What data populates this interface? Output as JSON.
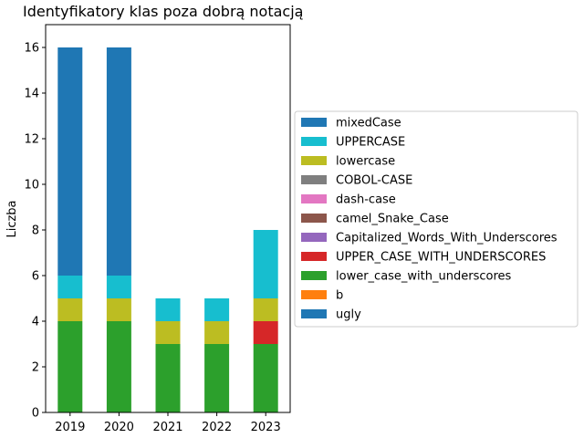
{
  "chart_data": {
    "type": "bar",
    "stacked": true,
    "title": "Identyfikatory klas poza dobrą notacją",
    "xlabel": "",
    "ylabel": "Liczba",
    "categories": [
      "2019",
      "2020",
      "2021",
      "2022",
      "2023"
    ],
    "ylim": [
      0,
      17
    ],
    "yticks": [
      0,
      2,
      4,
      6,
      8,
      10,
      12,
      14,
      16
    ],
    "grid": false,
    "legend_position": "right",
    "series": [
      {
        "name": "ugly",
        "color": "#1f77b4",
        "values": [
          0,
          0,
          0,
          0,
          0
        ]
      },
      {
        "name": "b",
        "color": "#ff7f0e",
        "values": [
          0,
          0,
          0,
          0,
          0
        ]
      },
      {
        "name": "lower_case_with_underscores",
        "color": "#2ca02c",
        "values": [
          4,
          4,
          3,
          3,
          3
        ]
      },
      {
        "name": "UPPER_CASE_WITH_UNDERSCORES",
        "color": "#d62728",
        "values": [
          0,
          0,
          0,
          0,
          1
        ]
      },
      {
        "name": "Capitalized_Words_With_Underscores",
        "color": "#9467bd",
        "values": [
          0,
          0,
          0,
          0,
          0
        ]
      },
      {
        "name": "camel_Snake_Case",
        "color": "#8c564b",
        "values": [
          0,
          0,
          0,
          0,
          0
        ]
      },
      {
        "name": "dash-case",
        "color": "#e377c2",
        "values": [
          0,
          0,
          0,
          0,
          0
        ]
      },
      {
        "name": "COBOL-CASE",
        "color": "#7f7f7f",
        "values": [
          0,
          0,
          0,
          0,
          0
        ]
      },
      {
        "name": "lowercase",
        "color": "#bcbd22",
        "values": [
          1,
          1,
          1,
          1,
          1
        ]
      },
      {
        "name": "UPPERCASE",
        "color": "#17becf",
        "values": [
          1,
          1,
          1,
          1,
          3
        ]
      },
      {
        "name": "mixedCase",
        "color": "#1f77b4",
        "values": [
          10,
          10,
          0,
          0,
          0
        ]
      }
    ]
  }
}
